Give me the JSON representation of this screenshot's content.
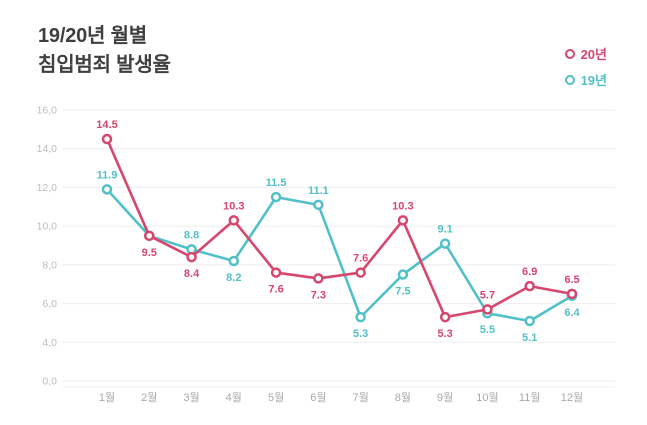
{
  "title": {
    "line1": "19/20년 월별",
    "line2": "침입범죄 발생율"
  },
  "legend": [
    {
      "label": "20년",
      "color": "#d6466d"
    },
    {
      "label": "19년",
      "color": "#52c0c8"
    }
  ],
  "colors": {
    "background": "#ffffff",
    "title_text": "#3f3f3f",
    "grid_line": "#ededed",
    "axis_tick_text": "#bcbcbc",
    "x_label_text": "#a9a9a9",
    "series_20": "#d6466d",
    "series_19": "#52c0c8"
  },
  "chart_data": {
    "type": "line",
    "title": "19/20년 월별 침입범죄 발생율",
    "categories": [
      "1월",
      "2월",
      "3월",
      "4월",
      "5월",
      "6월",
      "7월",
      "8월",
      "9월",
      "10월",
      "11월",
      "12월"
    ],
    "y_axis": {
      "tick_labels": [
        "16,0",
        "14,0",
        "12,0",
        "10,0",
        "8,0",
        "6,0",
        "4,0",
        "0,0"
      ],
      "grid": true
    },
    "legend_position": "top-right",
    "series": [
      {
        "name": "20년",
        "color": "#d6466d",
        "values": [
          14.5,
          9.5,
          8.4,
          10.3,
          7.6,
          7.3,
          7.6,
          10.3,
          5.3,
          5.7,
          6.9,
          6.5
        ],
        "point_labels": [
          "14.5",
          "9.5",
          "8.4",
          "10.3",
          "7.6",
          "7.3",
          "7.6",
          "10.3",
          "5.3",
          "5.7",
          "6.9",
          "6.5"
        ],
        "label_side": [
          "above",
          "below",
          "below",
          "above",
          "below",
          "below",
          "above",
          "above",
          "below",
          "above",
          "above",
          "above"
        ]
      },
      {
        "name": "19년",
        "color": "#52c0c8",
        "values": [
          11.9,
          9.5,
          8.8,
          8.2,
          11.5,
          11.1,
          5.3,
          7.5,
          9.1,
          5.5,
          5.1,
          6.4
        ],
        "point_labels": [
          "11.9",
          "",
          "8.8",
          "8.2",
          "11.5",
          "11.1",
          "5.3",
          "7.5",
          "9.1",
          "5.5",
          "5.1",
          "6.4"
        ],
        "label_side": [
          "above",
          "above",
          "above",
          "below",
          "above",
          "above",
          "below",
          "below",
          "above",
          "below",
          "below",
          "below"
        ]
      }
    ]
  }
}
